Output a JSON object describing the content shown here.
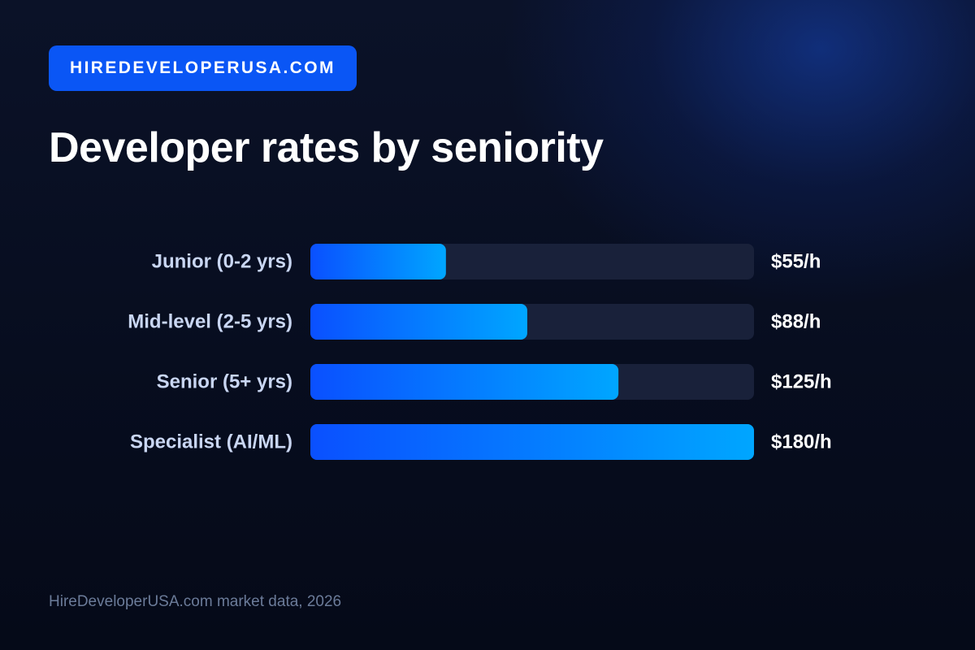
{
  "brand": {
    "label": "HIREDEVELOPERUSA.COM"
  },
  "title": "Developer rates by seniority",
  "footer": "HireDeveloperUSA.com market data, 2026",
  "colors": {
    "background": "#070d1f",
    "brand": "#0a56f5",
    "bar_start": "#0a50ff",
    "bar_end": "#00a6ff",
    "track": "#19213a",
    "label": "#c9d6f2",
    "value": "#ffffff"
  },
  "chart_data": {
    "type": "bar",
    "orientation": "horizontal",
    "categories": [
      "Junior (0-2 yrs)",
      "Mid-level (2-5 yrs)",
      "Senior (5+ yrs)",
      "Specialist (AI/ML)"
    ],
    "values": [
      55,
      88,
      125,
      180
    ],
    "value_labels": [
      "$55/h",
      "$88/h",
      "$125/h",
      "$180/h"
    ],
    "unit": "$/h",
    "xlim": [
      0,
      180
    ],
    "grid": false,
    "legend": "none"
  }
}
